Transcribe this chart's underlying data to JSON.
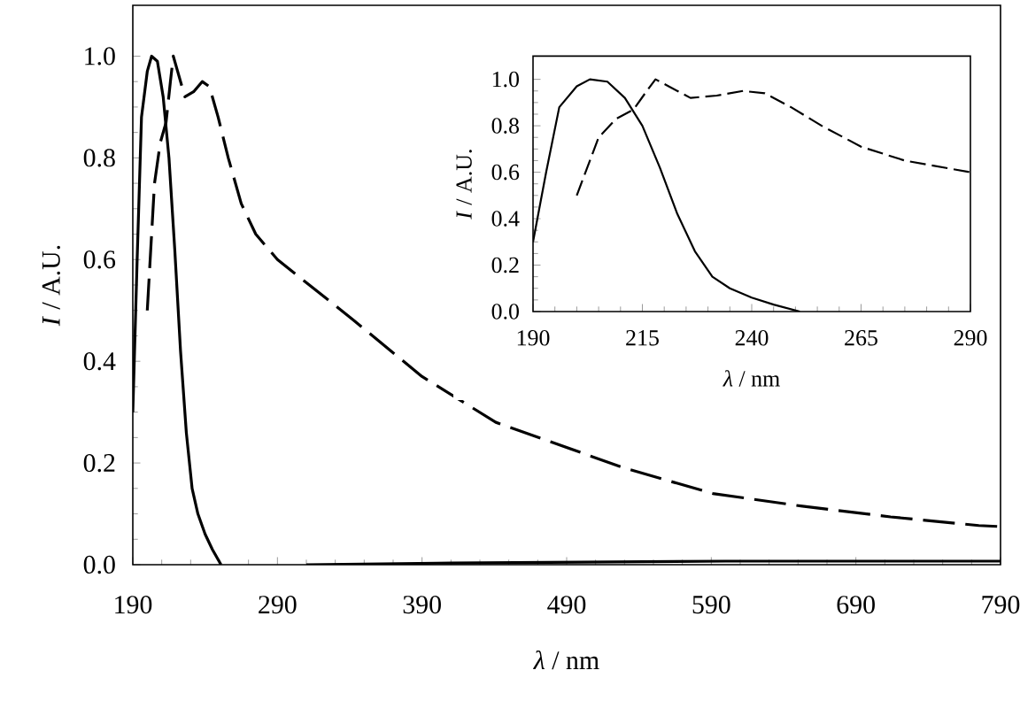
{
  "chart_data": [
    {
      "type": "line",
      "xlabel": "*λ* / nm",
      "ylabel": "*I* / A.U.",
      "xlim": [
        190,
        790
      ],
      "ylim": [
        0,
        1.1
      ],
      "xticks": [
        190,
        290,
        390,
        490,
        590,
        690,
        790
      ],
      "yticks": [
        {
          "value": 0,
          "label": "0.0"
        },
        {
          "value": 0.2,
          "label": "0.2"
        },
        {
          "value": 0.4,
          "label": "0.4"
        },
        {
          "value": 0.6,
          "label": "0.6"
        },
        {
          "value": 0.8,
          "label": "0.8"
        },
        {
          "value": 1,
          "label": "1.0"
        }
      ],
      "series": [
        {
          "color": "#000000",
          "line_style": "solid",
          "x": [
            190,
            193,
            196,
            200,
            203,
            207,
            211,
            215,
            219,
            223,
            227,
            231,
            235,
            240,
            245,
            251,
            280,
            310,
            400,
            500,
            600,
            700,
            790
          ],
          "values": [
            0.3,
            0.6,
            0.88,
            0.97,
            1.0,
            0.99,
            0.92,
            0.8,
            0.62,
            0.42,
            0.26,
            0.15,
            0.1,
            0.06,
            0.03,
            0.0,
            null,
            0.0,
            0.003,
            0.005,
            0.007,
            0.007,
            0.007
          ]
        },
        {
          "color": "#000000",
          "line_style": "dashed",
          "x": [
            200,
            205,
            209,
            213,
            216,
            218,
            221,
            226,
            232,
            238,
            243,
            249,
            256,
            265,
            275,
            290,
            343,
            390,
            441,
            530,
            591,
            653,
            714,
            775,
            790
          ],
          "values": [
            0.5,
            0.75,
            0.83,
            0.87,
            0.95,
            1.0,
            0.97,
            0.92,
            0.93,
            0.95,
            0.94,
            0.88,
            0.8,
            0.71,
            0.65,
            0.6,
            0.48,
            0.37,
            0.28,
            0.19,
            0.14,
            0.115,
            0.094,
            0.077,
            0.075
          ]
        }
      ]
    },
    {
      "type": "line",
      "xlabel": "*λ* / nm",
      "ylabel": "*I* / A.U.",
      "xlim": [
        190,
        290
      ],
      "ylim": [
        0,
        1.1
      ],
      "xticks": [
        190,
        215,
        240,
        265,
        290
      ],
      "yticks": [
        {
          "value": 0,
          "label": "0.0"
        },
        {
          "value": 0.2,
          "label": "0.2"
        },
        {
          "value": 0.4,
          "label": "0.4"
        },
        {
          "value": 0.6,
          "label": "0.6"
        },
        {
          "value": 0.8,
          "label": "0.8"
        },
        {
          "value": 1,
          "label": "1.0"
        }
      ],
      "series": [
        {
          "color": "#000000",
          "line_style": "solid",
          "x": [
            190,
            193,
            196,
            200,
            203,
            207,
            211,
            215,
            219,
            223,
            227,
            231,
            235,
            240,
            245,
            251
          ],
          "values": [
            0.3,
            0.6,
            0.88,
            0.97,
            1.0,
            0.99,
            0.92,
            0.8,
            0.62,
            0.42,
            0.26,
            0.15,
            0.1,
            0.06,
            0.03,
            0.0
          ]
        },
        {
          "color": "#000000",
          "line_style": "dashed",
          "x": [
            200,
            205,
            209,
            213,
            216,
            218,
            221,
            226,
            232,
            238,
            243,
            249,
            256,
            265,
            275,
            290
          ],
          "values": [
            0.5,
            0.75,
            0.83,
            0.87,
            0.95,
            1.0,
            0.97,
            0.92,
            0.93,
            0.95,
            0.94,
            0.88,
            0.8,
            0.71,
            0.65,
            0.6
          ]
        }
      ]
    }
  ]
}
